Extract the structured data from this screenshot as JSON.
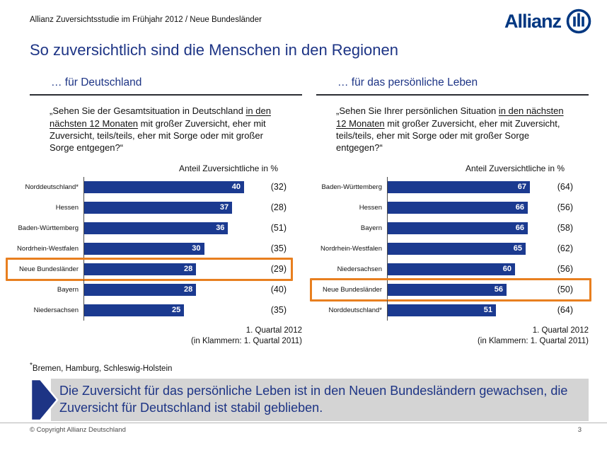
{
  "header": {
    "subtitle": "Allianz Zuversichtsstudie im Frühjahr 2012 / Neue Bundesländer",
    "title": "So zuversichtlich sind die Menschen in den Regionen",
    "logo_text": "Allianz"
  },
  "columns": [
    {
      "header": "… für Deutschland",
      "question": {
        "prefix": "„Sehen Sie der Gesamtsituation in Deutschland ",
        "underlined": "in den nächsten 12 Monaten",
        "suffix": " mit großer Zuversicht, eher mit Zuversicht, teils/teils, eher mit Sorge oder mit großer Sorge entgegen?“"
      }
    },
    {
      "header": "… für das persönliche Leben",
      "question": {
        "prefix": "„Sehen Sie Ihrer persönlichen Situation ",
        "underlined": "in den nächsten 12 Monaten",
        "suffix": " mit großer Zuversicht, eher mit Zuversicht, teils/teils, eher mit Sorge oder mit großer Sorge entgegen?“"
      }
    }
  ],
  "chart_data": [
    {
      "type": "bar",
      "orientation": "horizontal",
      "title": "Anteil Zuversichtliche in %",
      "categories": [
        "Norddeutschland*",
        "Hessen",
        "Baden-Württemberg",
        "Nordrhein-Westfalen",
        "Neue Bundesländer",
        "Bayern",
        "Niedersachsen"
      ],
      "series": [
        {
          "name": "1. Quartal 2012",
          "values": [
            40,
            37,
            36,
            30,
            28,
            28,
            25
          ]
        },
        {
          "name": "1. Quartal 2011 (in Klammern)",
          "values": [
            32,
            28,
            51,
            35,
            29,
            40,
            35
          ]
        }
      ],
      "highlight_category": "Neue Bundesländer",
      "xlim": [
        0,
        43
      ],
      "grid": false,
      "legend_position": "none",
      "note_line1": "1. Quartal 2012",
      "note_line2": "(in Klammern: 1. Quartal 2011)"
    },
    {
      "type": "bar",
      "orientation": "horizontal",
      "title": "Anteil Zuversichtliche in %",
      "categories": [
        "Baden-Württemberg",
        "Hessen",
        "Bayern",
        "Nordrhein-Westfalen",
        "Niedersachsen",
        "Neue Bundesländer",
        "Norddeutschland*"
      ],
      "series": [
        {
          "name": "1. Quartal 2012",
          "values": [
            67,
            66,
            66,
            65,
            60,
            56,
            51
          ]
        },
        {
          "name": "1. Quartal 2011 (in Klammern)",
          "values": [
            64,
            56,
            58,
            62,
            56,
            50,
            64
          ]
        }
      ],
      "highlight_category": "Neue Bundesländer",
      "xlim": [
        0,
        73
      ],
      "grid": false,
      "legend_position": "none",
      "note_line1": "1. Quartal 2012",
      "note_line2": "(in Klammern: 1. Quartal 2011)"
    }
  ],
  "footnote": {
    "marker": "*",
    "text": "Bremen, Hamburg, Schleswig-Holstein"
  },
  "message": "Die Zuversicht für das persönliche Leben ist in den Neuen Bundesländern gewachsen, die Zuversicht für Deutschland ist stabil geblieben.",
  "footer": {
    "copyright": "© Copyright Allianz Deutschland",
    "page": "3"
  },
  "colors": {
    "allianz_blue": "#003781",
    "bar_blue": "#1b3a90",
    "highlight_orange": "#e87f1f",
    "message_bg": "#d4d4d4",
    "text_blue": "#1d3485"
  }
}
